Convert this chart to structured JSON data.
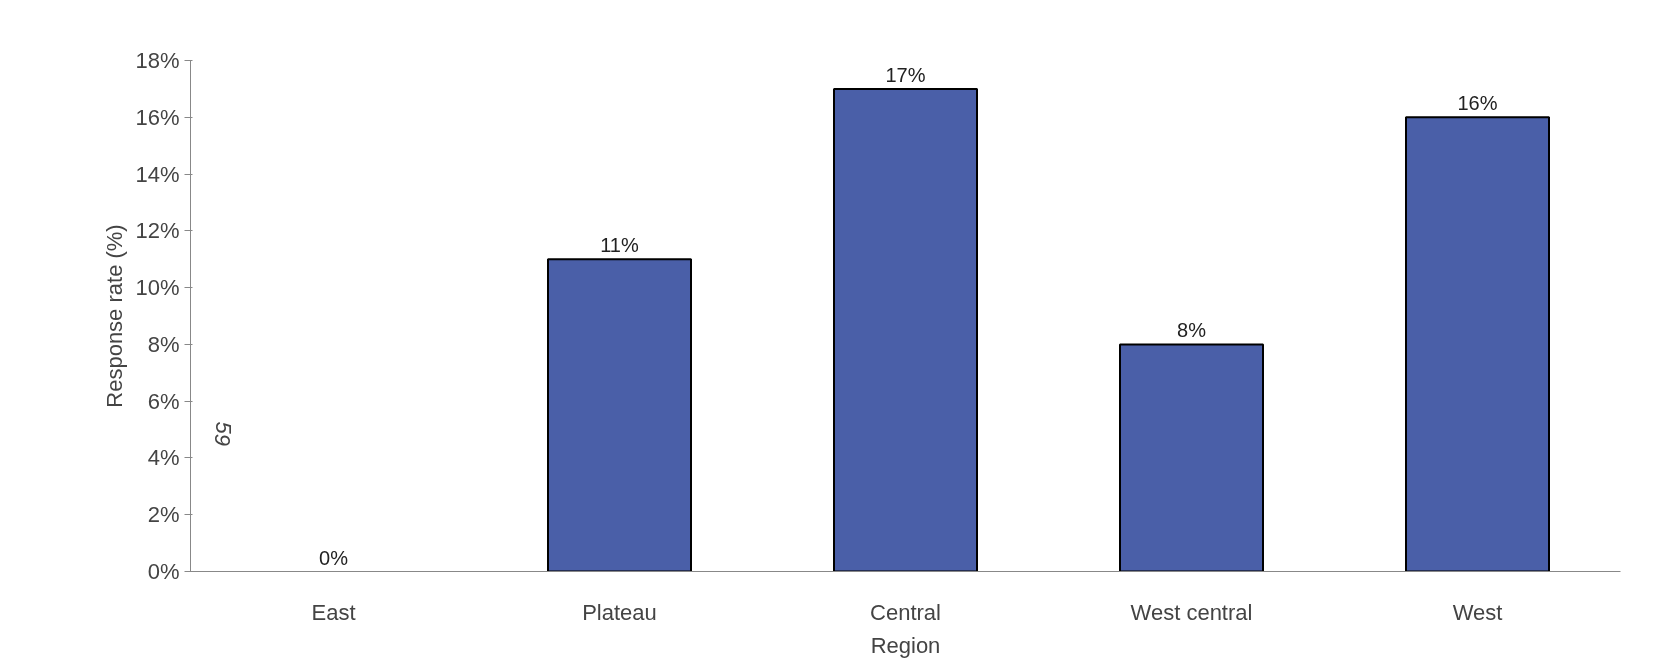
{
  "chart_data": {
    "type": "bar",
    "xlabel": "Region",
    "ylabel": "Response rate (%)",
    "categories": [
      "East",
      "Plateau",
      "Central",
      "West central",
      "West"
    ],
    "values": [
      0,
      11,
      17,
      8,
      16
    ],
    "value_labels": [
      "0%",
      "11%",
      "17%",
      "8%",
      "16%"
    ],
    "color": "#4a5fa8",
    "ylim": [
      0,
      18
    ],
    "yticks": [
      {
        "value": 0,
        "label": "0%"
      },
      {
        "value": 2,
        "label": "2%"
      },
      {
        "value": 4,
        "label": "4%"
      },
      {
        "value": 6,
        "label": "6%"
      },
      {
        "value": 8,
        "label": "8%"
      },
      {
        "value": 10,
        "label": "10%"
      },
      {
        "value": 12,
        "label": "12%"
      },
      {
        "value": 14,
        "label": "14%"
      },
      {
        "value": 16,
        "label": "16%"
      },
      {
        "value": 18,
        "label": "18%"
      }
    ],
    "grid": false,
    "annotations": [
      "59"
    ]
  }
}
